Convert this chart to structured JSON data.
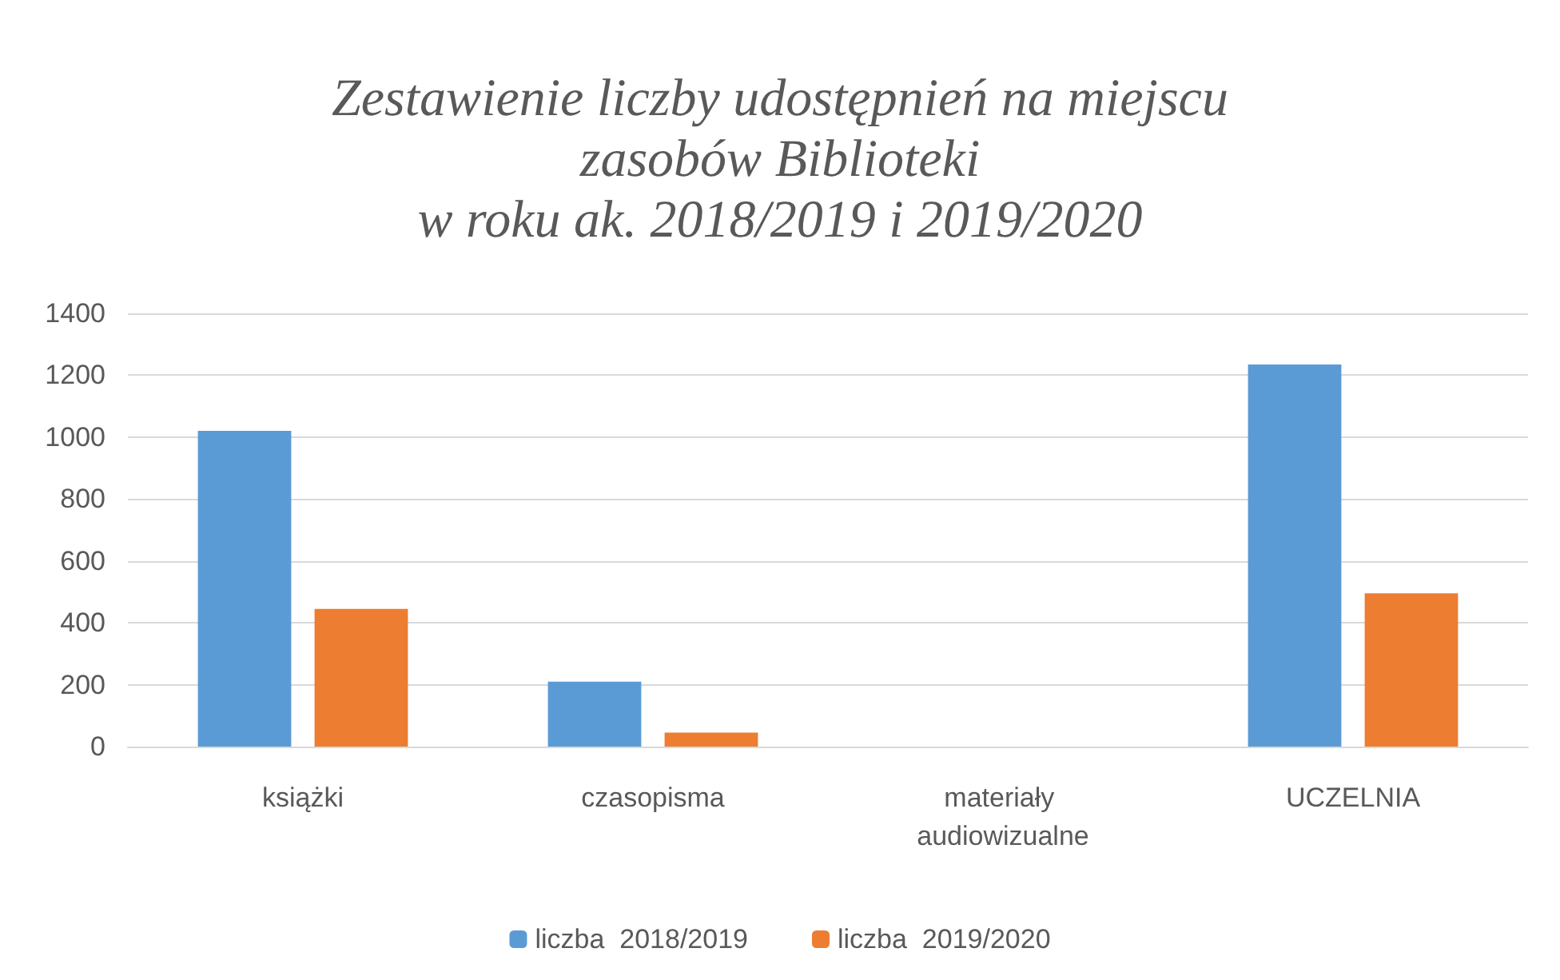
{
  "chart_data": {
    "type": "bar",
    "title": "Zestawienie liczby udostępnień na miejscu\nzasobów Biblioteki\nw roku ak. 2018/2019 i 2019/2020",
    "categories": [
      "książki",
      "czasopisma",
      "materiały audiowizualne",
      "UCZELNIA"
    ],
    "series": [
      {
        "name": "liczba  2018/2019",
        "color": "#5b9bd5",
        "values": [
          1020,
          210,
          0,
          1235
        ]
      },
      {
        "name": "liczba  2019/2020",
        "color": "#ed7d31",
        "values": [
          445,
          45,
          0,
          495
        ]
      }
    ],
    "ylim": [
      0,
      1400
    ],
    "yticks": [
      0,
      200,
      400,
      600,
      800,
      1000,
      1200,
      1400
    ],
    "grid": "y",
    "legend": "bottom"
  }
}
